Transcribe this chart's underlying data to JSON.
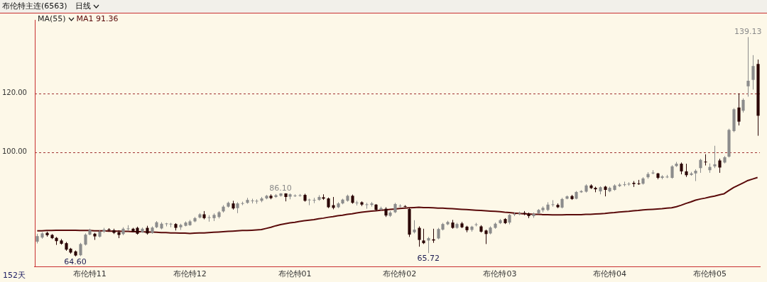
{
  "chart_data": {
    "type": "candlestick",
    "title": "布伦特主连(6563)",
    "subtitle": "日线",
    "categories": [
      null,
      null,
      null,
      null,
      null,
      null,
      null,
      null,
      null,
      null,
      null,
      "布伦特11",
      null,
      null,
      null,
      null,
      null,
      null,
      null,
      null,
      null,
      null,
      null,
      null,
      null,
      null,
      null,
      null,
      null,
      null,
      null,
      null,
      "布伦特12",
      null,
      null,
      null,
      null,
      null,
      null,
      null,
      null,
      null,
      null,
      null,
      null,
      null,
      null,
      null,
      null,
      null,
      null,
      null,
      null,
      null,
      "布伦特01",
      null,
      null,
      null,
      null,
      null,
      null,
      null,
      null,
      null,
      null,
      null,
      null,
      null,
      null,
      null,
      null,
      null,
      null,
      null,
      null,
      null,
      "布伦特02",
      null,
      null,
      null,
      null,
      null,
      null,
      null,
      null,
      null,
      null,
      null,
      null,
      null,
      null,
      null,
      null,
      null,
      null,
      null,
      null,
      "布伦特03",
      null,
      null,
      null,
      null,
      null,
      null,
      null,
      null,
      null,
      null,
      null,
      null,
      null,
      null,
      null,
      null,
      null,
      null,
      null,
      null,
      null,
      null,
      "布伦特04",
      null,
      null,
      null,
      null,
      null,
      null,
      null,
      null,
      null,
      null,
      null,
      null,
      null,
      null,
      null,
      null,
      null,
      null,
      null,
      null,
      "布伦特05",
      null,
      null,
      null,
      null,
      null,
      null,
      null,
      null,
      null,
      null
    ],
    "ohlc": [
      [
        69.6,
        72.3,
        69.0,
        71.5
      ],
      [
        71.0,
        72.8,
        70.6,
        72.4
      ],
      [
        72.6,
        73.0,
        71.3,
        71.8
      ],
      [
        71.9,
        72.2,
        70.5,
        70.8
      ],
      [
        70.9,
        71.2,
        68.5,
        69.8
      ],
      [
        70.0,
        70.5,
        68.6,
        68.9
      ],
      [
        69.1,
        69.5,
        66.5,
        66.9
      ],
      [
        67.2,
        67.5,
        65.5,
        65.9
      ],
      [
        66.3,
        66.6,
        64.6,
        64.9
      ],
      [
        65.0,
        69.2,
        64.7,
        68.8
      ],
      [
        68.6,
        72.4,
        68.3,
        72.0
      ],
      [
        72.0,
        74.0,
        71.8,
        73.5
      ],
      [
        72.3,
        72.6,
        70.2,
        71.4
      ],
      [
        71.3,
        73.5,
        71.0,
        73.0
      ],
      [
        73.0,
        74.3,
        72.6,
        73.7
      ],
      [
        73.8,
        74.2,
        73.0,
        73.5
      ],
      [
        73.5,
        74.0,
        72.2,
        72.6
      ],
      [
        72.8,
        73.5,
        70.8,
        71.9
      ],
      [
        72.2,
        74.5,
        71.8,
        74.0
      ],
      [
        73.9,
        75.2,
        73.2,
        74.1
      ],
      [
        74.0,
        74.3,
        72.8,
        73.0
      ],
      [
        74.3,
        74.7,
        72.0,
        72.3
      ],
      [
        72.8,
        74.4,
        72.6,
        74.0
      ],
      [
        74.3,
        75.0,
        72.0,
        72.4
      ],
      [
        72.6,
        74.8,
        72.3,
        74.4
      ],
      [
        74.5,
        76.6,
        74.2,
        76.2
      ],
      [
        74.1,
        76.2,
        73.8,
        75.7
      ],
      [
        75.6,
        76.0,
        74.8,
        75.8
      ],
      [
        75.6,
        76.0,
        74.5,
        75.7
      ],
      [
        75.6,
        75.9,
        73.4,
        74.3
      ],
      [
        74.5,
        75.7,
        73.6,
        75.3
      ],
      [
        75.0,
        76.5,
        74.8,
        76.1
      ],
      [
        75.2,
        77.0,
        75.0,
        76.5
      ],
      [
        76.5,
        78.0,
        76.2,
        77.6
      ],
      [
        77.8,
        79.3,
        77.5,
        78.9
      ],
      [
        78.9,
        80.0,
        77.2,
        77.6
      ],
      [
        77.8,
        78.6,
        76.4,
        77.9
      ],
      [
        77.6,
        79.2,
        76.6,
        78.7
      ],
      [
        78.0,
        80.0,
        77.5,
        79.6
      ],
      [
        79.9,
        82.0,
        79.5,
        81.5
      ],
      [
        81.5,
        83.2,
        81.2,
        82.8
      ],
      [
        82.6,
        83.5,
        80.5,
        80.9
      ],
      [
        81.0,
        83.0,
        79.3,
        82.6
      ],
      [
        82.6,
        83.2,
        82.0,
        82.7
      ],
      [
        82.8,
        84.5,
        82.5,
        83.8
      ],
      [
        83.5,
        84.2,
        82.6,
        83.6
      ],
      [
        83.4,
        84.0,
        82.5,
        83.5
      ],
      [
        83.5,
        84.8,
        83.0,
        84.3
      ],
      [
        84.3,
        85.5,
        84.0,
        85.2
      ],
      [
        85.2,
        85.7,
        84.0,
        84.4
      ],
      [
        84.8,
        85.8,
        84.5,
        85.4
      ],
      [
        85.2,
        86.1,
        84.9,
        86.0
      ],
      [
        86.0,
        86.05,
        83.3,
        84.8
      ],
      [
        84.9,
        86.0,
        84.0,
        85.7
      ],
      [
        85.2,
        85.7,
        84.8,
        85.3
      ],
      [
        85.3,
        85.8,
        84.9,
        85.4
      ],
      [
        85.5,
        85.9,
        83.2,
        83.5
      ],
      [
        83.8,
        84.2,
        82.0,
        83.9
      ],
      [
        83.7,
        84.5,
        82.7,
        83.8
      ],
      [
        83.8,
        85.4,
        83.5,
        84.8
      ],
      [
        84.7,
        85.7,
        83.8,
        84.2
      ],
      [
        84.3,
        84.6,
        81.0,
        81.3
      ],
      [
        82.0,
        84.8,
        80.6,
        81.1
      ],
      [
        81.3,
        83.0,
        81.0,
        82.6
      ],
      [
        82.6,
        84.2,
        82.3,
        83.9
      ],
      [
        83.5,
        85.6,
        83.2,
        85.2
      ],
      [
        85.2,
        85.6,
        82.5,
        82.8
      ],
      [
        82.8,
        83.5,
        81.9,
        82.9
      ],
      [
        83.0,
        83.3,
        81.7,
        82.2
      ],
      [
        82.2,
        82.8,
        80.8,
        82.3
      ],
      [
        82.1,
        83.1,
        81.5,
        82.6
      ],
      [
        82.2,
        82.4,
        80.1,
        80.4
      ],
      [
        80.5,
        81.5,
        80.2,
        81.0
      ],
      [
        80.8,
        81.3,
        78.0,
        78.5
      ],
      [
        78.4,
        80.0,
        78.0,
        79.5
      ],
      [
        79.6,
        82.8,
        79.3,
        82.4
      ],
      [
        81.6,
        82.3,
        81.3,
        81.8
      ],
      [
        81.7,
        82.0,
        81.3,
        81.6
      ],
      [
        80.7,
        81.0,
        71.2,
        72.0
      ],
      [
        72.8,
        76.9,
        72.4,
        73.7
      ],
      [
        74.3,
        74.8,
        67.9,
        70.2
      ],
      [
        70.0,
        74.0,
        68.8,
        69.1
      ],
      [
        70.0,
        71.2,
        65.72,
        70.8
      ],
      [
        70.4,
        74.0,
        69.2,
        70.0
      ],
      [
        70.7,
        74.3,
        70.4,
        73.9
      ],
      [
        73.7,
        76.0,
        73.4,
        75.6
      ],
      [
        75.5,
        76.7,
        75.2,
        76.3
      ],
      [
        76.1,
        77.0,
        74.0,
        74.3
      ],
      [
        74.3,
        76.0,
        74.0,
        75.6
      ],
      [
        75.8,
        76.3,
        74.2,
        74.5
      ],
      [
        74.7,
        75.0,
        72.8,
        73.5
      ],
      [
        73.6,
        75.0,
        73.0,
        74.7
      ],
      [
        75.4,
        76.0,
        74.8,
        75.5
      ],
      [
        74.8,
        75.2,
        72.7,
        73.0
      ],
      [
        73.4,
        73.7,
        68.8,
        72.2
      ],
      [
        72.4,
        74.8,
        72.1,
        74.4
      ],
      [
        74.3,
        76.1,
        74.0,
        75.7
      ],
      [
        75.9,
        77.3,
        75.6,
        76.9
      ],
      [
        77.3,
        77.6,
        75.6,
        75.9
      ],
      [
        76.1,
        79.0,
        75.5,
        78.7
      ],
      [
        78.9,
        79.6,
        78.3,
        79.0
      ],
      [
        79.1,
        79.8,
        78.6,
        79.2
      ],
      [
        79.4,
        80.0,
        78.6,
        79.3
      ],
      [
        79.1,
        79.5,
        77.6,
        78.3
      ],
      [
        78.3,
        79.5,
        77.7,
        79.0
      ],
      [
        79.3,
        80.7,
        79.0,
        80.4
      ],
      [
        80.3,
        81.6,
        79.6,
        81.1
      ],
      [
        80.4,
        83.0,
        80.0,
        82.2
      ],
      [
        82.1,
        83.7,
        81.5,
        82.3
      ],
      [
        82.1,
        82.6,
        81.0,
        81.3
      ],
      [
        81.2,
        84.5,
        80.9,
        84.1
      ],
      [
        84.2,
        85.3,
        84.0,
        85.0
      ],
      [
        85.1,
        85.5,
        83.8,
        84.1
      ],
      [
        84.2,
        86.8,
        84.0,
        86.5
      ],
      [
        86.4,
        87.1,
        86.2,
        86.8
      ],
      [
        86.6,
        89.1,
        86.3,
        88.7
      ],
      [
        88.7,
        89.1,
        87.5,
        87.8
      ],
      [
        87.9,
        88.3,
        86.4,
        87.4
      ],
      [
        86.7,
        88.4,
        85.7,
        88.1
      ],
      [
        88.3,
        88.6,
        85.0,
        87.2
      ],
      [
        86.7,
        88.3,
        86.4,
        87.9
      ],
      [
        87.2,
        89.1,
        86.9,
        88.7
      ],
      [
        88.5,
        89.5,
        88.2,
        89.0
      ],
      [
        89.0,
        90.0,
        88.4,
        89.1
      ],
      [
        89.1,
        89.8,
        88.6,
        89.3
      ],
      [
        89.6,
        90.2,
        88.2,
        89.2
      ],
      [
        89.4,
        90.6,
        88.9,
        89.2
      ],
      [
        89.3,
        91.5,
        89.0,
        91.1
      ],
      [
        91.5,
        93.2,
        91.0,
        92.6
      ],
      [
        92.8,
        93.9,
        92.5,
        93.1
      ],
      [
        92.8,
        93.0,
        90.8,
        91.3
      ],
      [
        91.3,
        92.2,
        90.8,
        91.8
      ],
      [
        91.6,
        92.3,
        91.2,
        91.7
      ],
      [
        91.3,
        95.6,
        91.0,
        95.2
      ],
      [
        95.3,
        96.7,
        95.0,
        96.1
      ],
      [
        96.1,
        96.5,
        92.5,
        93.5
      ],
      [
        93.5,
        96.1,
        91.6,
        92.2
      ],
      [
        92.3,
        93.3,
        92.0,
        92.8
      ],
      [
        92.8,
        94.2,
        90.2,
        93.7
      ],
      [
        94.6,
        97.8,
        93.0,
        97.4
      ],
      [
        96.8,
        99.3,
        95.5,
        96.7
      ],
      [
        93.9,
        96.2,
        93.0,
        95.0
      ],
      [
        95.2,
        102.2,
        94.6,
        95.9
      ],
      [
        97.2,
        97.8,
        93.0,
        94.8
      ],
      [
        96.5,
        98.7,
        96.2,
        98.3
      ],
      [
        98.5,
        108.0,
        98.2,
        107.6
      ],
      [
        107.2,
        115.0,
        106.8,
        114.6
      ],
      [
        115.2,
        120.0,
        109.1,
        110.4
      ],
      [
        114.1,
        118.3,
        113.5,
        117.8
      ],
      [
        122.4,
        139.13,
        118.9,
        124.3
      ],
      [
        124.6,
        133.0,
        121.3,
        129.3
      ],
      [
        130.0,
        131.5,
        105.6,
        112.4
      ]
    ],
    "colors": [
      "#8c8c8c",
      "#8c8c8c",
      "#2b0505",
      "#2b0505",
      "#2b0505",
      "#2b0505",
      "#2b0505",
      "#2b0505",
      "#2b0505",
      "#8c8c8c",
      "#8c8c8c",
      "#8c8c8c",
      "#2b0505",
      "#8c8c8c",
      "#8c8c8c",
      "#2b0505",
      "#2b0505",
      "#2b0505",
      "#8c8c8c",
      "#8c8c8c",
      "#2b0505",
      "#2b0505",
      "#8c8c8c",
      "#2b0505",
      "#8c8c8c",
      "#8c8c8c",
      "#8c8c8c",
      "#8c8c8c",
      "#8c8c8c",
      "#2b0505",
      "#8c8c8c",
      "#8c8c8c",
      "#8c8c8c",
      "#8c8c8c",
      "#8c8c8c",
      "#2b0505",
      "#8c8c8c",
      "#8c8c8c",
      "#8c8c8c",
      "#8c8c8c",
      "#8c8c8c",
      "#2b0505",
      "#8c8c8c",
      "#8c8c8c",
      "#8c8c8c",
      "#8c8c8c",
      "#8c8c8c",
      "#8c8c8c",
      "#8c8c8c",
      "#2b0505",
      "#8c8c8c",
      "#8c8c8c",
      "#2b0505",
      "#8c8c8c",
      "#8c8c8c",
      "#8c8c8c",
      "#2b0505",
      "#8c8c8c",
      "#8c8c8c",
      "#8c8c8c",
      "#2b0505",
      "#2b0505",
      "#2b0505",
      "#8c8c8c",
      "#8c8c8c",
      "#8c8c8c",
      "#2b0505",
      "#8c8c8c",
      "#2b0505",
      "#8c8c8c",
      "#8c8c8c",
      "#2b0505",
      "#8c8c8c",
      "#2b0505",
      "#8c8c8c",
      "#8c8c8c",
      "#8c8c8c",
      "#2b0505",
      "#2b0505",
      "#8c8c8c",
      "#2b0505",
      "#2b0505",
      "#8c8c8c",
      "#2b0505",
      "#8c8c8c",
      "#8c8c8c",
      "#8c8c8c",
      "#2b0505",
      "#8c8c8c",
      "#2b0505",
      "#2b0505",
      "#8c8c8c",
      "#8c8c8c",
      "#2b0505",
      "#2b0505",
      "#8c8c8c",
      "#8c8c8c",
      "#8c8c8c",
      "#2b0505",
      "#8c8c8c",
      "#8c8c8c",
      "#8c8c8c",
      "#2b0505",
      "#2b0505",
      "#8c8c8c",
      "#8c8c8c",
      "#8c8c8c",
      "#8c8c8c",
      "#8c8c8c",
      "#2b0505",
      "#8c8c8c",
      "#8c8c8c",
      "#2b0505",
      "#8c8c8c",
      "#8c8c8c",
      "#8c8c8c",
      "#2b0505",
      "#2b0505",
      "#8c8c8c",
      "#2b0505",
      "#8c8c8c",
      "#8c8c8c",
      "#8c8c8c",
      "#8c8c8c",
      "#8c8c8c",
      "#2b0505",
      "#2b0505",
      "#8c8c8c",
      "#8c8c8c",
      "#8c8c8c",
      "#2b0505",
      "#8c8c8c",
      "#8c8c8c",
      "#8c8c8c",
      "#8c8c8c",
      "#2b0505",
      "#2b0505",
      "#8c8c8c",
      "#8c8c8c",
      "#8c8c8c",
      "#2b0505",
      "#8c8c8c",
      "#8c8c8c",
      "#2b0505",
      "#8c8c8c",
      "#8c8c8c",
      "#8c8c8c",
      "#2b0505",
      "#8c8c8c",
      "#8c8c8c",
      "#8c8c8c",
      "#2b0505"
    ],
    "series": [
      {
        "type": "line",
        "color": "#5a0a0a",
        "values": [
          73.3,
          73.3,
          73.4,
          73.4,
          73.5,
          73.5,
          73.5,
          73.5,
          73.5,
          73.4,
          73.4,
          73.4,
          73.3,
          73.3,
          73.3,
          73.2,
          73.2,
          73.2,
          73.1,
          73.1,
          73.0,
          73.0,
          73.0,
          72.9,
          72.9,
          72.8,
          72.7,
          72.7,
          72.6,
          72.6,
          72.5,
          72.5,
          72.4,
          72.5,
          72.6,
          72.6,
          72.7,
          72.8,
          72.9,
          73.0,
          73.1,
          73.2,
          73.3,
          73.4,
          73.4,
          73.5,
          73.6,
          73.7,
          74.1,
          74.5,
          75.0,
          75.4,
          75.7,
          76.0,
          76.2,
          76.5,
          76.7,
          76.9,
          77.1,
          77.4,
          77.6,
          77.9,
          78.1,
          78.4,
          78.6,
          78.9,
          79.1,
          79.4,
          79.6,
          79.8,
          80.0,
          80.1,
          80.3,
          80.4,
          80.6,
          80.7,
          80.9,
          81.0,
          81.1,
          81.2,
          81.3,
          81.2,
          81.2,
          81.1,
          81.0,
          81.0,
          80.9,
          80.8,
          80.7,
          80.6,
          80.5,
          80.4,
          80.3,
          80.2,
          80.1,
          80.0,
          79.9,
          79.8,
          79.6,
          79.5,
          79.3,
          79.2,
          79.1,
          79.0,
          78.9,
          78.9,
          78.8,
          78.8,
          78.7,
          78.7,
          78.7,
          78.8,
          78.8,
          78.8,
          78.8,
          78.9,
          78.9,
          79.0,
          79.1,
          79.2,
          79.4,
          79.5,
          79.7,
          79.8,
          79.9,
          80.1,
          80.2,
          80.4,
          80.5,
          80.6,
          80.7,
          80.8,
          81.0,
          81.1,
          81.5,
          82.0,
          82.6,
          83.1,
          83.7,
          84.1,
          84.4,
          84.8,
          85.1,
          85.5,
          85.9,
          87.0,
          88.0,
          88.8,
          89.6,
          90.4,
          90.9,
          91.4
        ]
      }
    ],
    "ylim": [
      61,
      145
    ],
    "yticks": [
      {
        "value": 100,
        "label": "100.00"
      },
      {
        "value": 120,
        "label": "120.00"
      }
    ],
    "grid": "y",
    "annotations": [
      "152天",
      "MA(55)",
      "MA1 91.36",
      {
        "text": "139.13",
        "y": 139.13
      },
      {
        "text": "86.10",
        "y": 86.1
      },
      {
        "text": "65.72",
        "y": 65.72
      },
      {
        "text": "64.60",
        "y": 64.6
      }
    ]
  }
}
